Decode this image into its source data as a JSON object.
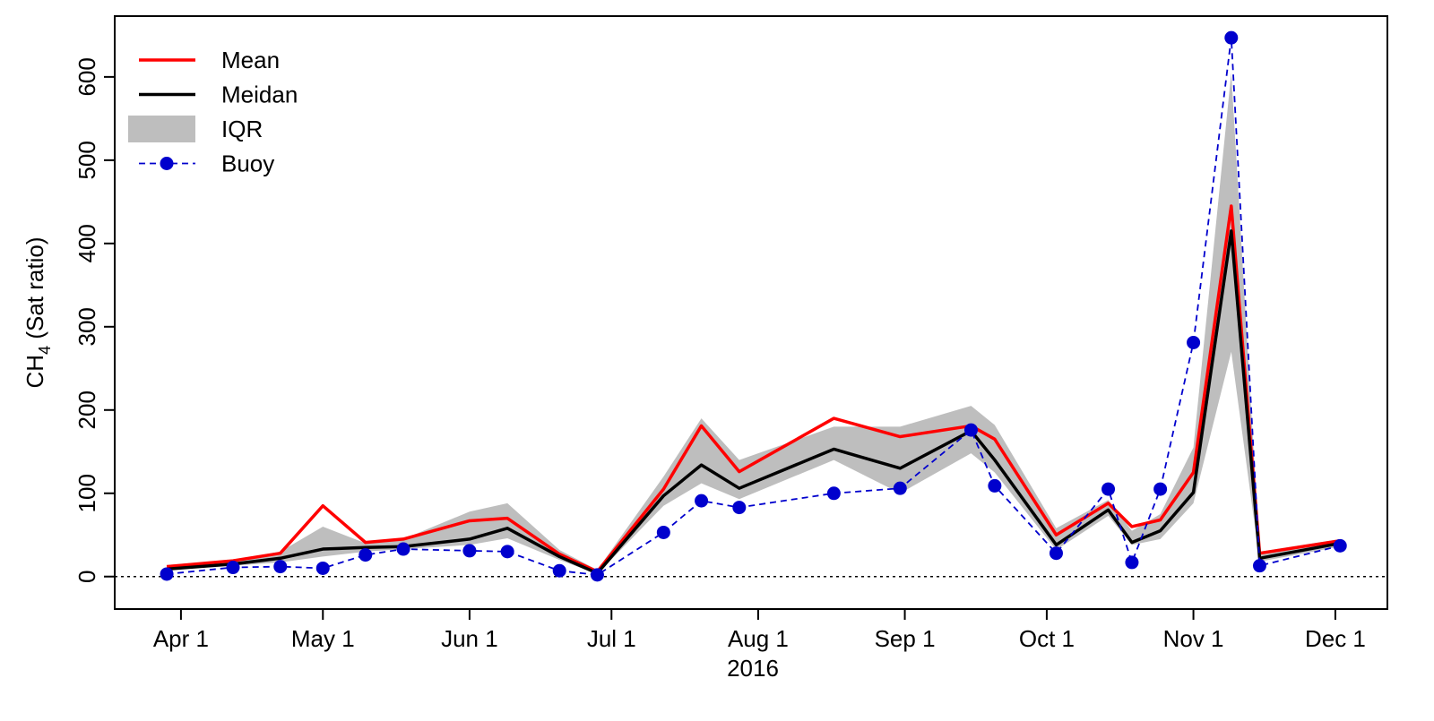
{
  "chart_data": {
    "type": "line",
    "xlabel": "2016",
    "ylabel": {
      "text": "CH",
      "sub": "4",
      "rest": " (Sat ratio)"
    },
    "x": [
      "2016-03-29",
      "2016-04-12",
      "2016-04-22",
      "2016-05-01",
      "2016-05-10",
      "2016-05-18",
      "2016-06-01",
      "2016-06-09",
      "2016-06-20",
      "2016-06-28",
      "2016-07-12",
      "2016-07-20",
      "2016-07-28",
      "2016-08-17",
      "2016-08-31",
      "2016-09-15",
      "2016-09-20",
      "2016-10-03",
      "2016-10-14",
      "2016-10-19",
      "2016-10-25",
      "2016-11-01",
      "2016-11-09",
      "2016-11-15",
      "2016-12-02"
    ],
    "xlim": [
      "2016-03-18",
      "2016-12-12"
    ],
    "xticks": [
      {
        "value": "2016-04-01",
        "label": "Apr 1"
      },
      {
        "value": "2016-05-01",
        "label": "May 1"
      },
      {
        "value": "2016-06-01",
        "label": "Jun 1"
      },
      {
        "value": "2016-07-01",
        "label": "Jul 1"
      },
      {
        "value": "2016-08-01",
        "label": "Aug 1"
      },
      {
        "value": "2016-09-01",
        "label": "Sep 1"
      },
      {
        "value": "2016-10-01",
        "label": "Oct 1"
      },
      {
        "value": "2016-11-01",
        "label": "Nov 1"
      },
      {
        "value": "2016-12-01",
        "label": "Dec 1"
      }
    ],
    "ylim": [
      -39,
      673
    ],
    "yticks": [
      0,
      100,
      200,
      300,
      400,
      500,
      600
    ],
    "hline": 0,
    "legend": "top-left",
    "series": [
      {
        "name": "Mean",
        "color": "#ff0000",
        "style": "line",
        "values": [
          12,
          19,
          28,
          85,
          41,
          45,
          67,
          70,
          27,
          6,
          105,
          181,
          126,
          190,
          168,
          181,
          165,
          50,
          88,
          60,
          68,
          125,
          445,
          28,
          43
        ]
      },
      {
        "name": "Meidan",
        "color": "#000000",
        "style": "line",
        "values": [
          9,
          15,
          22,
          33,
          35,
          36,
          45,
          58,
          24,
          4,
          97,
          134,
          106,
          153,
          130,
          175,
          140,
          38,
          80,
          41,
          55,
          101,
          415,
          22,
          40
        ]
      },
      {
        "name": "IQR",
        "color": "#bebebe",
        "style": "band",
        "low": [
          8,
          13,
          17,
          24,
          30,
          33,
          38,
          46,
          20,
          3,
          85,
          112,
          93,
          140,
          100,
          148,
          125,
          32,
          73,
          38,
          45,
          88,
          270,
          18,
          36
        ],
        "high": [
          14,
          20,
          30,
          60,
          40,
          45,
          78,
          88,
          32,
          8,
          120,
          190,
          140,
          180,
          180,
          205,
          182,
          58,
          92,
          55,
          75,
          155,
          605,
          30,
          45
        ]
      },
      {
        "name": "Buoy",
        "color": "#0000cd",
        "style": "dashed-points",
        "values": [
          3,
          11,
          12,
          10,
          26,
          33,
          31,
          30,
          7,
          2,
          53,
          91,
          83,
          100,
          106,
          176,
          109,
          28,
          105,
          17,
          105,
          281,
          647,
          13,
          37
        ]
      }
    ]
  }
}
